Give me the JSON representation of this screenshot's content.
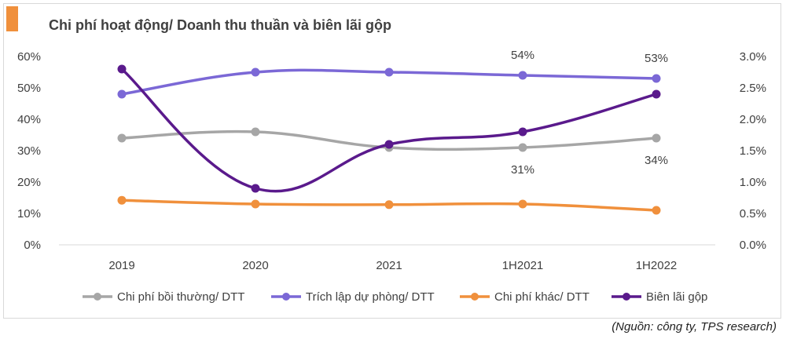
{
  "chart_data": {
    "type": "line",
    "title": "Chi phí hoạt động/ Doanh thu thuần và biên lãi gộp",
    "categories": [
      "2019",
      "2020",
      "2021",
      "1H2021",
      "1H2022"
    ],
    "y_left": {
      "range": [
        0,
        60
      ],
      "ticks": [
        "0%",
        "10%",
        "20%",
        "30%",
        "40%",
        "50%",
        "60%"
      ]
    },
    "y_right": {
      "range": [
        0,
        3.0
      ],
      "ticks": [
        "0.0%",
        "0.5%",
        "1.0%",
        "1.5%",
        "2.0%",
        "2.5%",
        "3.0%"
      ]
    },
    "series": [
      {
        "name": "Chi phí bồi thường/ DTT",
        "axis": "left",
        "color": "#a6a6a6",
        "values": [
          34,
          36,
          31,
          31,
          34
        ],
        "labels": [
          "",
          "",
          "",
          "31%",
          "34%"
        ]
      },
      {
        "name": "Trích lập dự phòng/ DTT",
        "axis": "left",
        "color": "#7b68d6",
        "values": [
          48,
          55,
          55,
          54,
          53
        ],
        "labels": [
          "",
          "",
          "",
          "54%",
          "53%"
        ]
      },
      {
        "name": "Chi phí khác/ DTT",
        "axis": "left",
        "color": "#f0903c",
        "values": [
          14.2,
          13,
          12.8,
          13,
          11
        ],
        "labels": [
          "",
          "",
          "",
          "",
          ""
        ]
      },
      {
        "name": "Biên lãi gộp",
        "axis": "right",
        "color": "#5a1a8c",
        "values": [
          2.8,
          0.9,
          1.6,
          1.8,
          2.4
        ],
        "labels": [
          "",
          "",
          "",
          "",
          ""
        ]
      }
    ],
    "legend_position": "bottom",
    "grid": false
  },
  "source": "(Nguồn: công ty, TPS research)",
  "colors": {
    "accent": "#f0903c",
    "axis": "#d9d9d9",
    "text": "#404040"
  }
}
